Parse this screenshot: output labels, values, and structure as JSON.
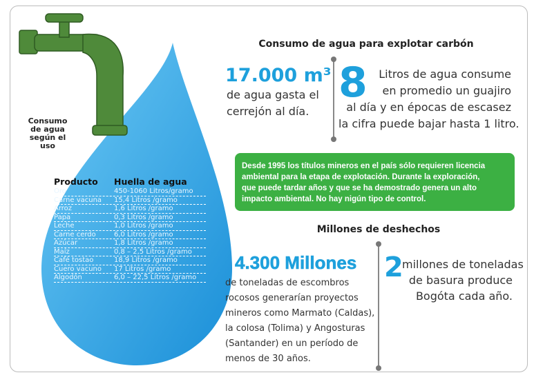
{
  "faucet_label": [
    "Consumo",
    "de agua",
    "según el",
    "uso"
  ],
  "table": {
    "header": [
      "Producto",
      "Huella de agua"
    ],
    "rows": [
      [
        "Oro",
        "450-1060 Litros/gramo"
      ],
      [
        "Carne vacuna",
        "15,4 Litros /gramo"
      ],
      [
        "Arroz",
        "1,6 Litros /gramo"
      ],
      [
        "Papa",
        "0,3 Litros /gramo"
      ],
      [
        "Leche",
        "1,0 Litros /gramo"
      ],
      [
        "Carne cerdo",
        "6,0 Litros /gramo"
      ],
      [
        "Azúcar",
        "1,8 Litros /gramo"
      ],
      [
        "Maíz",
        "0,8 – 2,5 Litros /gramo"
      ],
      [
        "Café tostao",
        "18,9 Litros /gramo"
      ],
      [
        "Cuero vacuno",
        "17 Litros /gramo"
      ],
      [
        "Algodón",
        "6,0 – 22,5 Litros /gramo"
      ]
    ]
  },
  "section1": {
    "title": "Consumo de agua para explotar carbón",
    "left": {
      "figure": "17.000 m³",
      "lines": [
        "de agua gasta el",
        "cerrejón al día."
      ]
    },
    "right": {
      "figure": "8",
      "lines": [
        "Litros de agua consume",
        "en promedio un guajiro",
        "al día y en épocas de escasez",
        "la cifra puede bajar hasta 1 litro."
      ]
    }
  },
  "notice": [
    "Desde 1995 los títulos mineros en el país sólo requieren licencia",
    "ambiental para la etapa de explotación. Durante la exploración,",
    "que puede tardar años y que se ha demostrado genera un alto",
    "impacto ambiental. No hay nigún tipo de control."
  ],
  "section2": {
    "title": "Millones de deshechos",
    "left": {
      "figure": "4.300 Millones",
      "lines": [
        "de toneladas de escombros",
        "rocosos generarían proyectos",
        "mineros como Marmato (Caldas),",
        "la colosa (Tolima) y Angosturas",
        "(Santander) en un período de",
        "menos de 30 años."
      ]
    },
    "right": {
      "figure": "2",
      "lines": [
        "millones de toneladas",
        "de basura produce",
        "Bogóta cada año."
      ]
    }
  }
}
